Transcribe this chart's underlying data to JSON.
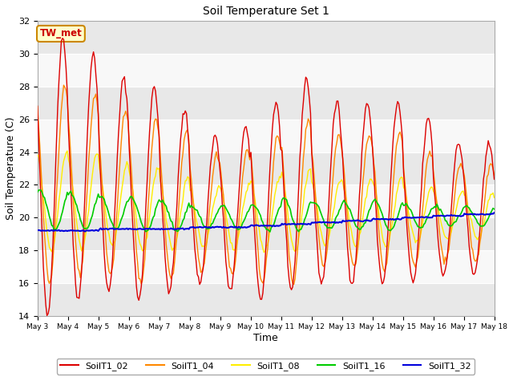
{
  "title": "Soil Temperature Set 1",
  "xlabel": "Time",
  "ylabel": "Soil Temperature (C)",
  "ylim": [
    14,
    32
  ],
  "annotation_text": "TW_met",
  "annotation_color": "#cc0000",
  "annotation_bg": "#ffffcc",
  "annotation_border": "#cc8800",
  "fig_bg": "#ffffff",
  "plot_bg": "#f0f0f0",
  "band_color1": "#e8e8e8",
  "band_color2": "#f8f8f8",
  "series_colors": {
    "SoilT1_02": "#dd0000",
    "SoilT1_04": "#ff8800",
    "SoilT1_08": "#ffee00",
    "SoilT1_16": "#00cc00",
    "SoilT1_32": "#0000dd"
  },
  "legend_entries": [
    "SoilT1_02",
    "SoilT1_04",
    "SoilT1_08",
    "SoilT1_16",
    "SoilT1_32"
  ],
  "tick_labels": [
    "May 3",
    "May 4",
    "May 5",
    "May 6",
    "May 7",
    "May 8",
    "May 9",
    "May 10",
    "May 11",
    "May 12",
    "May 13",
    "May 14",
    "May 15",
    "May 16",
    "May 17",
    "May 18"
  ],
  "yticks": [
    14,
    16,
    18,
    20,
    22,
    24,
    26,
    28,
    30,
    32
  ]
}
